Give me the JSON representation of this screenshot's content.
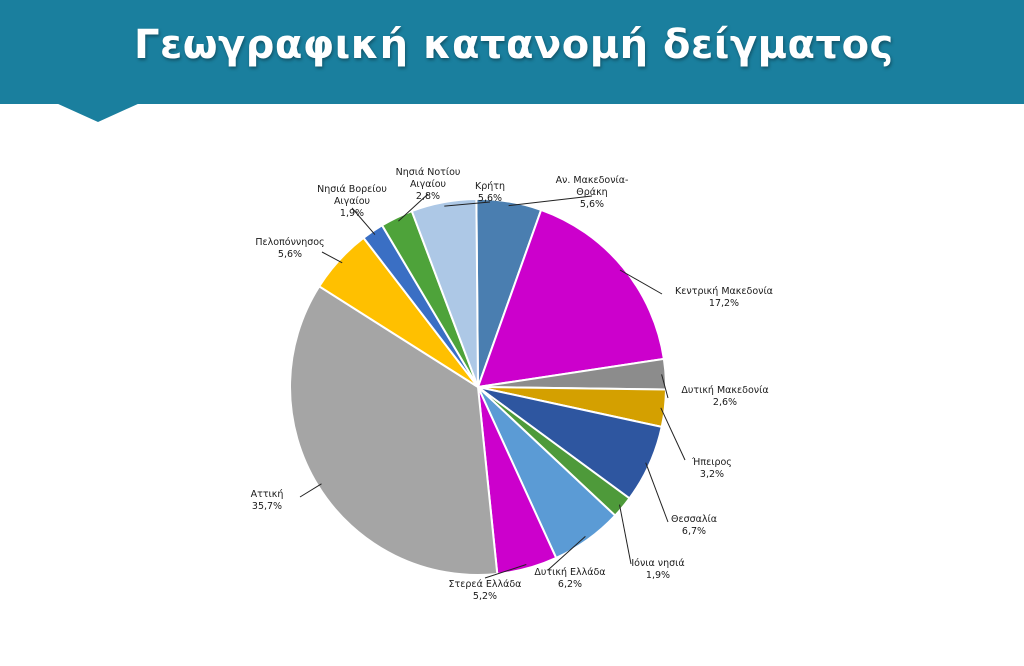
{
  "header": {
    "title": "Γεωγραφική κατανομή δείγματος",
    "color": "#1a7f9e"
  },
  "chart_data": {
    "type": "pie",
    "title": "",
    "slices": [
      {
        "label": [
          "Αν. Μακεδονία-",
          "Θράκη"
        ],
        "value_label": "5,6%",
        "value": 5.6,
        "color": "#4a7eb0"
      },
      {
        "label": [
          "Κεντρική Μακεδονία"
        ],
        "value_label": "17,2%",
        "value": 17.2,
        "color": "#cc00cc"
      },
      {
        "label": [
          "Δυτική Μακεδονία"
        ],
        "value_label": "2,6%",
        "value": 2.6,
        "color": "#8c8c8c"
      },
      {
        "label": [
          "Ήπειρος"
        ],
        "value_label": "3,2%",
        "value": 3.2,
        "color": "#d4a000"
      },
      {
        "label": [
          "Θεσσαλία"
        ],
        "value_label": "6,7%",
        "value": 6.7,
        "color": "#2e56a0"
      },
      {
        "label": [
          "Ιόνια νησιά"
        ],
        "value_label": "1,9%",
        "value": 1.9,
        "color": "#4e9a3a"
      },
      {
        "label": [
          "Δυτική Ελλάδα"
        ],
        "value_label": "6,2%",
        "value": 6.2,
        "color": "#5b9bd5"
      },
      {
        "label": [
          "Στερεά Ελλάδα"
        ],
        "value_label": "5,2%",
        "value": 5.2,
        "color": "#cc00cc"
      },
      {
        "label": [
          "Αττική"
        ],
        "value_label": "35,7%",
        "value": 35.7,
        "color": "#a5a5a5"
      },
      {
        "label": [
          "Πελοπόννησος"
        ],
        "value_label": "5,6%",
        "value": 5.6,
        "color": "#ffc000"
      },
      {
        "label": [
          "Νησιά Βορείου",
          "Αιγαίου"
        ],
        "value_label": "1,9%",
        "value": 1.9,
        "color": "#3a6fc4"
      },
      {
        "label": [
          "Νησιά Νοτίου",
          "Αιγαίου"
        ],
        "value_label": "2,8%",
        "value": 2.8,
        "color": "#4ea33a"
      },
      {
        "label": [
          "Κρήτη"
        ],
        "value_label": "5,6%",
        "value": 5.6,
        "color": "#adc8e6"
      }
    ]
  }
}
